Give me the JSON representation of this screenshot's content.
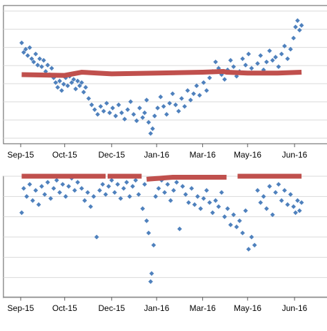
{
  "colors": {
    "scatter": "#4f81bd",
    "trend": "#c0504d",
    "grid": "#d9d9d9",
    "frame": "#595959",
    "text": "#000000"
  },
  "chart_data": [
    {
      "type": "scatter",
      "x_tick_labels": [
        "Sep-15",
        "Oct-15",
        "Dec-15",
        "Jan-16",
        "Mar-16",
        "May-16",
        "Jun-16"
      ],
      "x_ticks": [
        "2015-09-01",
        "2015-10-15",
        "2015-12-01",
        "2016-01-15",
        "2016-03-01",
        "2016-04-15",
        "2016-06-01"
      ],
      "xlim": [
        "2015-09-01",
        "2016-06-10"
      ],
      "ylim": [
        0,
        8
      ],
      "grid": true,
      "series": [
        {
          "marker": "diamond",
          "points": [
            [
              "2015-09-02",
              6.0
            ],
            [
              "2015-09-04",
              5.4
            ],
            [
              "2015-09-06",
              5.6
            ],
            [
              "2015-09-08",
              5.2
            ],
            [
              "2015-09-10",
              5.7
            ],
            [
              "2015-09-12",
              5.0
            ],
            [
              "2015-09-14",
              4.8
            ],
            [
              "2015-09-16",
              5.3
            ],
            [
              "2015-09-18",
              4.6
            ],
            [
              "2015-09-20",
              5.0
            ],
            [
              "2015-09-22",
              4.5
            ],
            [
              "2015-09-24",
              4.9
            ],
            [
              "2015-09-26",
              4.2
            ],
            [
              "2015-09-28",
              4.6
            ],
            [
              "2015-09-30",
              4.0
            ],
            [
              "2015-10-02",
              4.4
            ],
            [
              "2015-10-04",
              3.8
            ],
            [
              "2015-10-06",
              3.5
            ],
            [
              "2015-10-08",
              3.2
            ],
            [
              "2015-10-10",
              3.6
            ],
            [
              "2015-10-12",
              3.0
            ],
            [
              "2015-10-14",
              3.4
            ],
            [
              "2015-10-16",
              3.8
            ],
            [
              "2015-10-18",
              3.3
            ],
            [
              "2015-10-20",
              3.9
            ],
            [
              "2015-10-22",
              3.5
            ],
            [
              "2015-10-24",
              3.7
            ],
            [
              "2015-10-26",
              3.1
            ],
            [
              "2015-10-28",
              3.6
            ],
            [
              "2015-10-30",
              3.3
            ],
            [
              "2015-11-01",
              3.5
            ],
            [
              "2015-11-03",
              2.9
            ],
            [
              "2015-11-05",
              3.2
            ],
            [
              "2015-11-08",
              2.5
            ],
            [
              "2015-11-11",
              2.1
            ],
            [
              "2015-11-14",
              1.8
            ],
            [
              "2015-11-17",
              1.5
            ],
            [
              "2015-11-20",
              2.0
            ],
            [
              "2015-11-23",
              1.7
            ],
            [
              "2015-11-26",
              2.2
            ],
            [
              "2015-11-29",
              1.6
            ],
            [
              "2015-12-02",
              1.9
            ],
            [
              "2015-12-05",
              1.4
            ],
            [
              "2015-12-08",
              2.1
            ],
            [
              "2015-12-11",
              1.6
            ],
            [
              "2015-12-14",
              1.2
            ],
            [
              "2015-12-17",
              1.8
            ],
            [
              "2015-12-20",
              2.3
            ],
            [
              "2015-12-23",
              1.5
            ],
            [
              "2015-12-26",
              1.1
            ],
            [
              "2015-12-29",
              1.9
            ],
            [
              "2016-01-01",
              1.3
            ],
            [
              "2016-01-03",
              1.6
            ],
            [
              "2016-01-05",
              2.4
            ],
            [
              "2016-01-07",
              1.0
            ],
            [
              "2016-01-09",
              0.3
            ],
            [
              "2016-01-11",
              0.6
            ],
            [
              "2016-01-13",
              1.4
            ],
            [
              "2016-01-16",
              1.9
            ],
            [
              "2016-01-19",
              2.6
            ],
            [
              "2016-01-22",
              2.0
            ],
            [
              "2016-01-25",
              1.5
            ],
            [
              "2016-01-28",
              2.2
            ],
            [
              "2016-01-31",
              2.8
            ],
            [
              "2016-02-03",
              2.1
            ],
            [
              "2016-02-06",
              1.7
            ],
            [
              "2016-02-09",
              2.5
            ],
            [
              "2016-02-12",
              2.0
            ],
            [
              "2016-02-15",
              3.0
            ],
            [
              "2016-02-18",
              2.4
            ],
            [
              "2016-02-21",
              2.8
            ],
            [
              "2016-02-24",
              3.3
            ],
            [
              "2016-02-27",
              2.7
            ],
            [
              "2016-03-02",
              3.5
            ],
            [
              "2016-03-05",
              3.0
            ],
            [
              "2016-03-08",
              3.8
            ],
            [
              "2016-03-11",
              4.2
            ],
            [
              "2016-03-14",
              4.8
            ],
            [
              "2016-03-17",
              4.4
            ],
            [
              "2016-03-20",
              4.0
            ],
            [
              "2016-03-23",
              3.7
            ],
            [
              "2016-03-26",
              4.3
            ],
            [
              "2016-03-29",
              4.9
            ],
            [
              "2016-04-01",
              4.5
            ],
            [
              "2016-04-04",
              3.9
            ],
            [
              "2016-04-07",
              4.2
            ],
            [
              "2016-04-10",
              5.0
            ],
            [
              "2016-04-13",
              4.6
            ],
            [
              "2016-04-16",
              5.3
            ],
            [
              "2016-04-19",
              4.4
            ],
            [
              "2016-04-22",
              4.1
            ],
            [
              "2016-04-25",
              4.7
            ],
            [
              "2016-04-28",
              5.2
            ],
            [
              "2016-05-01",
              4.3
            ],
            [
              "2016-05-04",
              4.8
            ],
            [
              "2016-05-07",
              5.5
            ],
            [
              "2016-05-10",
              4.9
            ],
            [
              "2016-05-13",
              5.1
            ],
            [
              "2016-05-16",
              4.5
            ],
            [
              "2016-05-19",
              5.3
            ],
            [
              "2016-05-22",
              5.8
            ],
            [
              "2016-05-25",
              5.0
            ],
            [
              "2016-05-28",
              5.6
            ],
            [
              "2016-05-31",
              6.3
            ],
            [
              "2016-06-02",
              7.0
            ],
            [
              "2016-06-04",
              7.4
            ],
            [
              "2016-06-06",
              6.8
            ],
            [
              "2016-06-08",
              7.1
            ]
          ]
        },
        {
          "line": true,
          "points": [
            [
              "2015-09-02",
              4.0
            ],
            [
              "2015-10-15",
              3.95
            ],
            [
              "2015-11-01",
              4.15
            ],
            [
              "2015-12-01",
              4.05
            ],
            [
              "2016-01-15",
              4.1
            ],
            [
              "2016-03-01",
              4.15
            ],
            [
              "2016-03-22",
              4.2
            ],
            [
              "2016-03-25",
              4.15
            ],
            [
              "2016-04-15",
              4.1
            ],
            [
              "2016-05-15",
              4.1
            ],
            [
              "2016-06-08",
              4.15
            ]
          ]
        }
      ]
    },
    {
      "type": "scatter",
      "x_tick_labels": [
        "Sep-15",
        "Oct-15",
        "Dec-15",
        "Jan-16",
        "Mar-16",
        "May-16",
        "Jun-16"
      ],
      "x_ticks": [
        "2015-09-01",
        "2015-10-15",
        "2015-12-01",
        "2016-01-15",
        "2016-03-01",
        "2016-04-15",
        "2016-06-01"
      ],
      "xlim": [
        "2015-09-01",
        "2016-06-10"
      ],
      "ylim": [
        0,
        6
      ],
      "grid": true,
      "series": [
        {
          "marker": "diamond",
          "points": [
            [
              "2015-09-02",
              4.2
            ],
            [
              "2015-09-04",
              5.4
            ],
            [
              "2015-09-07",
              5.0
            ],
            [
              "2015-09-10",
              5.6
            ],
            [
              "2015-09-13",
              4.8
            ],
            [
              "2015-09-16",
              5.3
            ],
            [
              "2015-09-19",
              4.6
            ],
            [
              "2015-09-22",
              5.5
            ],
            [
              "2015-09-25",
              5.1
            ],
            [
              "2015-09-28",
              5.7
            ],
            [
              "2015-10-01",
              4.9
            ],
            [
              "2015-10-04",
              5.4
            ],
            [
              "2015-10-07",
              5.8
            ],
            [
              "2015-10-10",
              5.2
            ],
            [
              "2015-10-13",
              5.6
            ],
            [
              "2015-10-16",
              5.0
            ],
            [
              "2015-10-19",
              5.5
            ],
            [
              "2015-10-22",
              5.9
            ],
            [
              "2015-10-25",
              5.3
            ],
            [
              "2015-10-28",
              5.7
            ],
            [
              "2015-11-01",
              5.4
            ],
            [
              "2015-11-04",
              4.8
            ],
            [
              "2015-11-07",
              5.2
            ],
            [
              "2015-11-10",
              4.5
            ],
            [
              "2015-11-13",
              5.0
            ],
            [
              "2015-11-16",
              3.0
            ],
            [
              "2015-11-19",
              5.3
            ],
            [
              "2015-11-22",
              5.6
            ],
            [
              "2015-11-25",
              5.1
            ],
            [
              "2015-11-28",
              5.5
            ],
            [
              "2015-12-01",
              5.8
            ],
            [
              "2015-12-04",
              5.2
            ],
            [
              "2015-12-07",
              5.6
            ],
            [
              "2015-12-10",
              4.9
            ],
            [
              "2015-12-13",
              5.4
            ],
            [
              "2015-12-16",
              5.7
            ],
            [
              "2015-12-19",
              5.0
            ],
            [
              "2015-12-22",
              5.5
            ],
            [
              "2015-12-25",
              5.8
            ],
            [
              "2015-12-28",
              5.1
            ],
            [
              "2016-01-01",
              4.4
            ],
            [
              "2016-01-03",
              5.6
            ],
            [
              "2016-01-05",
              3.8
            ],
            [
              "2016-01-07",
              3.2
            ],
            [
              "2016-01-09",
              0.8
            ],
            [
              "2016-01-10",
              1.2
            ],
            [
              "2016-01-12",
              2.6
            ],
            [
              "2016-01-14",
              5.0
            ],
            [
              "2016-01-17",
              5.4
            ],
            [
              "2016-01-20",
              5.8
            ],
            [
              "2016-01-23",
              5.2
            ],
            [
              "2016-01-26",
              5.6
            ],
            [
              "2016-01-29",
              4.8
            ],
            [
              "2016-02-01",
              5.3
            ],
            [
              "2016-02-04",
              5.7
            ],
            [
              "2016-02-07",
              3.4
            ],
            [
              "2016-02-10",
              5.5
            ],
            [
              "2016-02-13",
              5.1
            ],
            [
              "2016-02-16",
              4.7
            ],
            [
              "2016-02-19",
              5.4
            ],
            [
              "2016-02-22",
              4.6
            ],
            [
              "2016-02-25",
              5.0
            ],
            [
              "2016-02-28",
              4.4
            ],
            [
              "2016-03-02",
              4.9
            ],
            [
              "2016-03-05",
              5.3
            ],
            [
              "2016-03-08",
              4.7
            ],
            [
              "2016-03-11",
              4.2
            ],
            [
              "2016-03-14",
              4.8
            ],
            [
              "2016-03-17",
              4.5
            ],
            [
              "2016-03-20",
              5.2
            ],
            [
              "2016-03-23",
              4.0
            ],
            [
              "2016-03-26",
              4.4
            ],
            [
              "2016-03-29",
              3.6
            ],
            [
              "2016-04-01",
              4.1
            ],
            [
              "2016-04-04",
              3.5
            ],
            [
              "2016-04-07",
              3.8
            ],
            [
              "2016-04-10",
              3.2
            ],
            [
              "2016-04-13",
              4.3
            ],
            [
              "2016-04-16",
              2.4
            ],
            [
              "2016-04-19",
              3.0
            ],
            [
              "2016-04-22",
              2.6
            ],
            [
              "2016-04-25",
              5.3
            ],
            [
              "2016-04-28",
              4.7
            ],
            [
              "2016-05-01",
              5.0
            ],
            [
              "2016-05-04",
              4.4
            ],
            [
              "2016-05-07",
              5.5
            ],
            [
              "2016-05-10",
              4.1
            ],
            [
              "2016-05-13",
              5.2
            ],
            [
              "2016-05-16",
              5.6
            ],
            [
              "2016-05-19",
              4.8
            ],
            [
              "2016-05-22",
              5.3
            ],
            [
              "2016-05-25",
              4.6
            ],
            [
              "2016-05-28",
              5.1
            ],
            [
              "2016-05-31",
              4.5
            ],
            [
              "2016-06-02",
              4.2
            ],
            [
              "2016-06-04",
              4.8
            ],
            [
              "2016-06-06",
              4.3
            ],
            [
              "2016-06-08",
              4.7
            ]
          ]
        },
        {
          "line": true,
          "segments": [
            [
              [
                "2015-09-02",
                6.0
              ],
              [
                "2015-11-25",
                6.0
              ]
            ],
            [
              [
                "2015-11-27",
                6.0
              ],
              [
                "2015-12-31",
                6.0
              ]
            ],
            [
              [
                "2016-01-05",
                5.85
              ],
              [
                "2016-01-31",
                5.95
              ],
              [
                "2016-03-25",
                5.95
              ]
            ],
            [
              [
                "2016-04-05",
                6.0
              ],
              [
                "2016-06-08",
                6.0
              ]
            ]
          ]
        }
      ]
    }
  ]
}
